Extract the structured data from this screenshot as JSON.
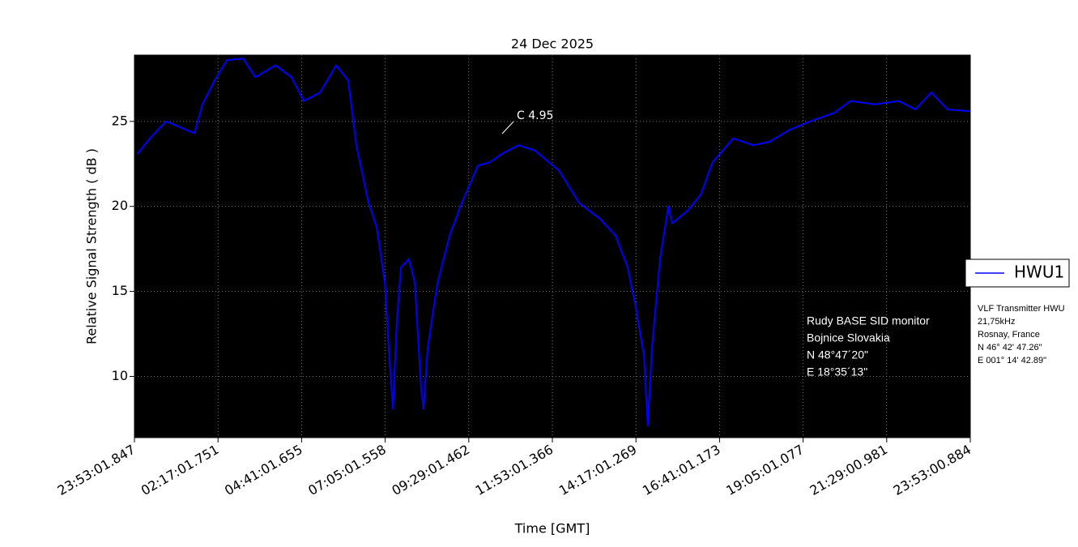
{
  "chart_data": {
    "type": "line",
    "title": "24 Dec 2025",
    "xlabel": "Time [GMT]",
    "ylabel": "Relative Signal Strength ( dB )",
    "x": [
      0.09,
      0.44,
      0.91,
      1.72,
      1.95,
      2.3,
      2.65,
      3.12,
      3.47,
      4.05,
      4.51,
      4.86,
      5.33,
      5.79,
      6.14,
      6.37,
      6.72,
      6.95,
      7.19,
      7.3,
      7.42,
      7.53,
      7.65,
      7.88,
      8.05,
      8.23,
      8.3,
      8.42,
      8.7,
      9.05,
      9.4,
      9.86,
      10.21,
      10.56,
      11.02,
      11.49,
      12.19,
      12.77,
      13.35,
      13.81,
      14.16,
      14.4,
      14.63,
      14.74,
      14.86,
      15.09,
      15.33,
      15.44,
      15.91,
      16.26,
      16.6,
      17.19,
      17.77,
      18.23,
      18.81,
      19.4,
      20.09,
      20.56,
      21.26,
      21.95,
      22.42,
      22.88,
      23.35,
      24.0
    ],
    "series": [
      {
        "name": "HWU1",
        "color": "#0000ff",
        "values": [
          23.1,
          24.0,
          25.0,
          24.3,
          26.0,
          27.4,
          28.6,
          28.7,
          27.6,
          28.3,
          27.6,
          26.2,
          26.7,
          28.3,
          27.4,
          23.6,
          20.2,
          18.8,
          15.5,
          11.7,
          8.1,
          13.1,
          16.4,
          16.9,
          15.5,
          9.3,
          8.1,
          11.7,
          15.5,
          18.3,
          20.2,
          22.4,
          22.6,
          23.1,
          23.6,
          23.3,
          22.1,
          20.2,
          19.3,
          18.3,
          16.4,
          14.0,
          11.2,
          7.1,
          11.7,
          16.9,
          20.0,
          19.0,
          19.8,
          20.7,
          22.6,
          24.0,
          23.6,
          23.8,
          24.5,
          25.0,
          25.5,
          26.2,
          26.0,
          26.2,
          25.7,
          26.7,
          25.7,
          25.6
        ]
      }
    ],
    "xlim": [
      0,
      24
    ],
    "xticks": [
      {
        "value": 0,
        "label": "23:53:01.847"
      },
      {
        "value": 2.4,
        "label": "02:17:01.751"
      },
      {
        "value": 4.8,
        "label": "04:41:01.655"
      },
      {
        "value": 7.2,
        "label": "07:05:01.558"
      },
      {
        "value": 9.6,
        "label": "09:29:01.462"
      },
      {
        "value": 12.0,
        "label": "11:53:01.366"
      },
      {
        "value": 14.4,
        "label": "14:17:01.269"
      },
      {
        "value": 16.8,
        "label": "16:41:01.173"
      },
      {
        "value": 19.2,
        "label": "19:05:01.077"
      },
      {
        "value": 21.6,
        "label": "21:29:00.981"
      },
      {
        "value": 24.0,
        "label": "23:53:00.884"
      }
    ],
    "ylim": [
      6.4,
      28.9
    ],
    "yticks": [
      10,
      15,
      20,
      25
    ],
    "grid": true,
    "legend": "right",
    "annotation": "C 4.95",
    "station": [
      "Rudy BASE SID monitor",
      "Bojnice Slovakia",
      "N 48°47´20\"",
      "E 18°35´13\""
    ],
    "transmitter": [
      "VLF Transmitter HWU",
      "21,75kHz",
      "Rosnay, France",
      "N 46° 42' 47.26\"",
      "E 001° 14' 42.89\""
    ]
  }
}
